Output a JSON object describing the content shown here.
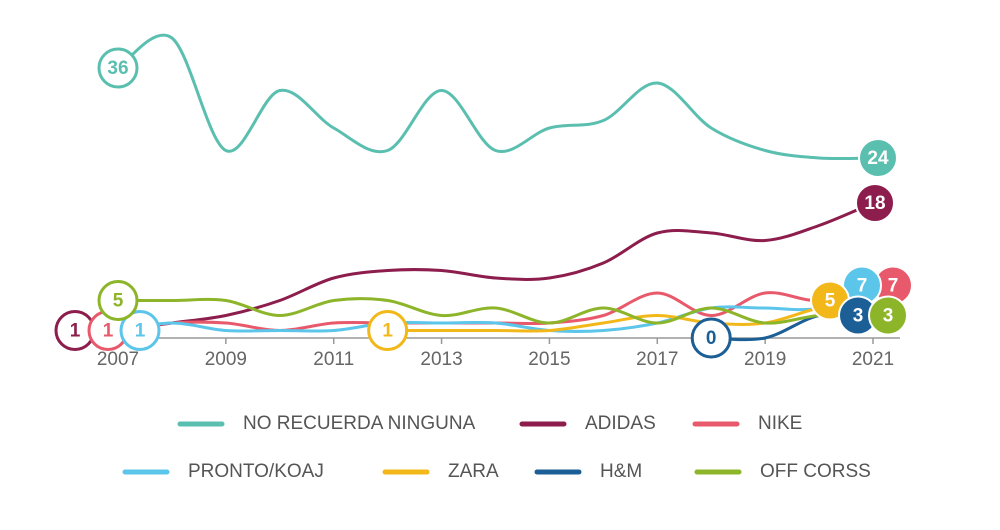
{
  "chart_data": {
    "type": "line",
    "x": [
      2007,
      2008,
      2009,
      2010,
      2011,
      2012,
      2013,
      2014,
      2015,
      2016,
      2017,
      2018,
      2019,
      2020,
      2021
    ],
    "xlim": [
      2007,
      2021
    ],
    "xticks": [
      2007,
      2009,
      2011,
      2013,
      2015,
      2017,
      2019,
      2021
    ],
    "ylim": [
      0,
      40
    ],
    "series": [
      {
        "name": "NO RECUERDA NINGUNA",
        "color": "#5bbfb0",
        "values": [
          36,
          40,
          25,
          33,
          28,
          25,
          33,
          25,
          28,
          29,
          34,
          28,
          25,
          24,
          24
        ]
      },
      {
        "name": "ADIDAS",
        "color": "#8c1d4c",
        "values": [
          1,
          2,
          3,
          5,
          8,
          9,
          9,
          8,
          8,
          10,
          14,
          14,
          13,
          15,
          18
        ]
      },
      {
        "name": "NIKE",
        "color": "#e8596b",
        "values": [
          1,
          2,
          2,
          1,
          2,
          2,
          2,
          2,
          2,
          3,
          6,
          3,
          6,
          5,
          7
        ]
      },
      {
        "name": "PRONTO/KOAJ",
        "color": "#5bc5ea",
        "values": [
          1,
          2,
          1,
          1,
          1,
          2,
          2,
          2,
          1,
          1,
          2,
          4,
          4,
          4,
          7
        ]
      },
      {
        "name": "ZARA",
        "color": "#f2b81a",
        "values": [
          null,
          null,
          null,
          null,
          null,
          1,
          1,
          1,
          1,
          2,
          3,
          2,
          2,
          4,
          5
        ]
      },
      {
        "name": "H&M",
        "color": "#1c5f96",
        "values": [
          null,
          null,
          null,
          null,
          null,
          null,
          null,
          null,
          null,
          null,
          null,
          0,
          0,
          3,
          3
        ]
      },
      {
        "name": "OFF CORSS",
        "color": "#8db52a",
        "values": [
          5,
          5,
          5,
          3,
          5,
          5,
          3,
          4,
          2,
          4,
          2,
          4,
          2,
          3,
          3
        ]
      }
    ]
  }
}
